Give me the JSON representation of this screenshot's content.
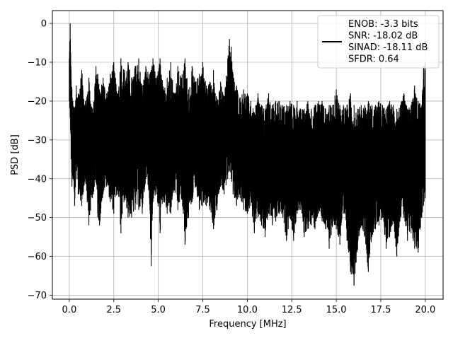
{
  "chart_data": {
    "type": "line",
    "title": "",
    "xlabel": "Frequency [MHz]",
    "ylabel": "PSD [dB]",
    "xlim": [
      -0.95,
      21.0
    ],
    "ylim": [
      -71.0,
      3.3
    ],
    "grid": true,
    "legend_placement": "upper-right",
    "line_color": "#000000",
    "x_ticks": [
      0.0,
      2.5,
      5.0,
      7.5,
      10.0,
      12.5,
      15.0,
      17.5,
      20.0
    ],
    "x_tick_labels": [
      "0.0",
      "2.5",
      "5.0",
      "7.5",
      "10.0",
      "12.5",
      "15.0",
      "17.5",
      "20.0"
    ],
    "y_ticks": [
      0,
      -10,
      -20,
      -30,
      -40,
      -50,
      -60,
      -70
    ],
    "y_tick_labels": [
      "0",
      "−10",
      "−20",
      "−30",
      "−40",
      "−50",
      "−60",
      "−70"
    ],
    "legend_lines": [
      "ENOB: -3.3 bits",
      "SNR: -18.02 dB",
      "SINAD: -18.11 dB",
      "SFDR: 0.64"
    ],
    "series": [
      {
        "x": [
          0.0,
          0.05,
          0.1,
          0.15,
          0.2,
          0.3,
          0.4,
          0.5,
          0.7,
          0.9,
          1.1,
          1.3,
          1.5,
          1.6,
          1.7,
          1.9,
          2.1,
          2.3,
          2.5,
          2.7,
          2.9,
          3.1,
          3.3,
          3.5,
          3.7,
          3.9,
          4.1,
          4.3,
          4.5,
          4.6,
          4.7,
          4.9,
          5.1,
          5.3,
          5.5,
          5.7,
          5.9,
          6.1,
          6.3,
          6.5,
          6.7,
          6.9,
          7.1,
          7.3,
          7.5,
          7.7,
          7.9,
          8.1,
          8.3,
          8.5,
          8.7,
          8.9,
          9.0,
          9.1,
          9.2,
          9.4,
          9.6,
          9.8,
          10.0,
          10.2,
          10.4,
          10.6,
          10.8,
          11.0,
          11.2,
          11.4,
          11.6,
          11.8,
          12.0,
          12.2,
          12.4,
          12.6,
          12.8,
          13.0,
          13.2,
          13.4,
          13.6,
          13.8,
          14.0,
          14.2,
          14.4,
          14.6,
          14.8,
          15.0,
          15.2,
          15.4,
          15.6,
          15.8,
          16.0,
          16.2,
          16.4,
          16.6,
          16.8,
          17.0,
          17.2,
          17.4,
          17.6,
          17.8,
          18.0,
          18.2,
          18.4,
          18.6,
          18.8,
          19.0,
          19.2,
          19.4,
          19.6,
          19.8,
          19.9,
          20.0
        ],
        "upper": [
          -9,
          0,
          -12,
          -17,
          -20,
          -22,
          -16,
          -18,
          -12,
          -20,
          -14,
          -22,
          -11,
          -13,
          -17,
          -14,
          -18,
          -13,
          -10,
          -18,
          -9,
          -12,
          -10,
          -14,
          -11,
          -9,
          -16,
          -11,
          -13,
          -12,
          -9,
          -14,
          -9,
          -17,
          -14,
          -10,
          -18,
          -11,
          -14,
          -9,
          -17,
          -11,
          -15,
          -13,
          -10,
          -16,
          -15,
          -12,
          -20,
          -15,
          -19,
          -9,
          -4,
          -6,
          -13,
          -16,
          -19,
          -17,
          -18,
          -20,
          -23,
          -18,
          -21,
          -22,
          -18,
          -21,
          -20,
          -20,
          -21,
          -21,
          -20,
          -21,
          -20,
          -22,
          -22,
          -20,
          -22,
          -21,
          -20,
          -20,
          -22,
          -21,
          -21,
          -17,
          -21,
          -21,
          -21,
          -18,
          -21,
          -22,
          -21,
          -21,
          -20,
          -21,
          -21,
          -20,
          -21,
          -22,
          -20,
          -21,
          -22,
          -21,
          -18,
          -22,
          -21,
          -16,
          -20,
          -21,
          -11,
          -10
        ],
        "lower": [
          -20,
          -24,
          -35,
          -42,
          -40,
          -47,
          -38,
          -44,
          -47,
          -40,
          -52,
          -45,
          -41,
          -50,
          -52,
          -44,
          -42,
          -46,
          -49,
          -43,
          -54,
          -45,
          -50,
          -50,
          -48,
          -48,
          -49,
          -40,
          -45,
          -62.5,
          -46,
          -44,
          -54,
          -46,
          -49,
          -49,
          -43,
          -48,
          -45,
          -57,
          -50,
          -46,
          -42,
          -48,
          -47,
          -47,
          -48,
          -53,
          -48,
          -42,
          -44,
          -40,
          -38,
          -40,
          -44,
          -47,
          -45,
          -48,
          -49,
          -47,
          -54,
          -50,
          -52,
          -55,
          -49,
          -52,
          -51,
          -49,
          -50,
          -56,
          -50,
          -56,
          -49,
          -48,
          -55,
          -53,
          -52,
          -53,
          -49,
          -51,
          -53,
          -58,
          -52,
          -53,
          -57,
          -49,
          -56,
          -64,
          -67.5,
          -58,
          -52,
          -55,
          -64,
          -55,
          -53,
          -52,
          -50,
          -58,
          -55,
          -51,
          -60,
          -50,
          -50,
          -56,
          -54,
          -58,
          -59,
          -50,
          -47,
          -45
        ]
      }
    ]
  }
}
